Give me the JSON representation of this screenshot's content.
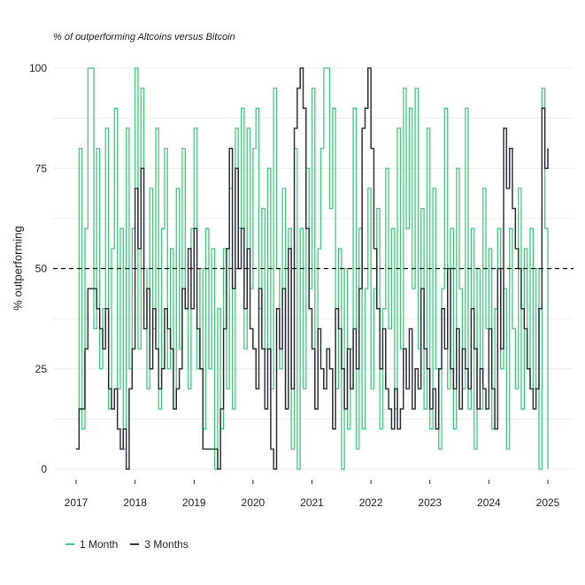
{
  "chart_data": {
    "type": "line",
    "title": "% of outperforming Altcoins versus Bitcoin",
    "ylabel": "% outperforming",
    "xlabel": "",
    "ylim": [
      0,
      100
    ],
    "y_ticks": [
      "0",
      "25",
      "50",
      "75",
      "100"
    ],
    "x_ticks": [
      "2017",
      "2018",
      "2019",
      "2020",
      "2021",
      "2022",
      "2023",
      "2024",
      "2025"
    ],
    "reference_line": {
      "y": 50,
      "style": "dashed",
      "color": "#111111"
    },
    "legend_position": "bottom-left",
    "grid": "horizontal",
    "x_unit": "year",
    "series": [
      {
        "name": "1 Month",
        "color": "#3ccf7a",
        "x": [
          2017.0,
          2017.05,
          2017.1,
          2017.15,
          2017.2,
          2017.25,
          2017.3,
          2017.35,
          2017.4,
          2017.45,
          2017.5,
          2017.55,
          2017.6,
          2017.65,
          2017.7,
          2017.75,
          2017.8,
          2017.85,
          2017.9,
          2017.95,
          2018.0,
          2018.05,
          2018.1,
          2018.15,
          2018.2,
          2018.25,
          2018.3,
          2018.35,
          2018.4,
          2018.45,
          2018.5,
          2018.55,
          2018.6,
          2018.65,
          2018.7,
          2018.75,
          2018.8,
          2018.85,
          2018.9,
          2018.95,
          2019.0,
          2019.05,
          2019.1,
          2019.15,
          2019.2,
          2019.25,
          2019.3,
          2019.35,
          2019.4,
          2019.45,
          2019.5,
          2019.55,
          2019.6,
          2019.65,
          2019.7,
          2019.75,
          2019.8,
          2019.85,
          2019.9,
          2019.95,
          2020.0,
          2020.05,
          2020.1,
          2020.15,
          2020.2,
          2020.25,
          2020.3,
          2020.35,
          2020.4,
          2020.45,
          2020.5,
          2020.55,
          2020.6,
          2020.65,
          2020.7,
          2020.75,
          2020.8,
          2020.85,
          2020.9,
          2020.95,
          2021.0,
          2021.05,
          2021.1,
          2021.15,
          2021.2,
          2021.25,
          2021.3,
          2021.35,
          2021.4,
          2021.45,
          2021.5,
          2021.55,
          2021.6,
          2021.65,
          2021.7,
          2021.75,
          2021.8,
          2021.85,
          2021.9,
          2021.95,
          2022.0,
          2022.05,
          2022.1,
          2022.15,
          2022.2,
          2022.25,
          2022.3,
          2022.35,
          2022.4,
          2022.45,
          2022.5,
          2022.55,
          2022.6,
          2022.65,
          2022.7,
          2022.75,
          2022.8,
          2022.85,
          2022.9,
          2022.95,
          2023.0,
          2023.05,
          2023.1,
          2023.15,
          2023.2,
          2023.25,
          2023.3,
          2023.35,
          2023.4,
          2023.45,
          2023.5,
          2023.55,
          2023.6,
          2023.65,
          2023.7,
          2023.75,
          2023.8,
          2023.85,
          2023.9,
          2023.95,
          2024.0,
          2024.05,
          2024.1,
          2024.15,
          2024.2,
          2024.25,
          2024.3,
          2024.35,
          2024.4,
          2024.45,
          2024.5,
          2024.55,
          2024.6,
          2024.65,
          2024.7,
          2024.75,
          2024.8,
          2024.85,
          2024.9,
          2024.95,
          2025.0
        ],
        "values": [
          5,
          80,
          10,
          60,
          100,
          100,
          35,
          80,
          25,
          40,
          85,
          15,
          55,
          90,
          20,
          60,
          5,
          85,
          25,
          60,
          100,
          30,
          95,
          50,
          20,
          70,
          35,
          85,
          15,
          60,
          80,
          25,
          55,
          15,
          70,
          30,
          80,
          40,
          20,
          60,
          85,
          25,
          50,
          10,
          60,
          25,
          55,
          0,
          40,
          10,
          55,
          20,
          70,
          15,
          85,
          60,
          90,
          30,
          85,
          45,
          80,
          90,
          40,
          65,
          30,
          75,
          20,
          95,
          50,
          25,
          70,
          15,
          60,
          5,
          80,
          0,
          60,
          20,
          75,
          45,
          95,
          15,
          55,
          80,
          100,
          100,
          65,
          90,
          20,
          55,
          0,
          50,
          10,
          30,
          90,
          5,
          60,
          10,
          45,
          70,
          20,
          45,
          65,
          10,
          40,
          75,
          35,
          60,
          15,
          85,
          30,
          95,
          60,
          90,
          45,
          95,
          30,
          65,
          15,
          85,
          10,
          70,
          25,
          5,
          45,
          90,
          20,
          60,
          10,
          75,
          45,
          20,
          90,
          15,
          60,
          5,
          50,
          15,
          70,
          35,
          55,
          10,
          40,
          60,
          25,
          45,
          5,
          60,
          35,
          20,
          70,
          15,
          55,
          25,
          60,
          20,
          50,
          0,
          95,
          60,
          0
        ]
      },
      {
        "name": "3 Months",
        "color": "#2d3238",
        "x": [
          2017.0,
          2017.05,
          2017.1,
          2017.15,
          2017.2,
          2017.25,
          2017.3,
          2017.35,
          2017.4,
          2017.45,
          2017.5,
          2017.55,
          2017.6,
          2017.65,
          2017.7,
          2017.75,
          2017.8,
          2017.85,
          2017.9,
          2017.95,
          2018.0,
          2018.05,
          2018.1,
          2018.15,
          2018.2,
          2018.25,
          2018.3,
          2018.35,
          2018.4,
          2018.45,
          2018.5,
          2018.55,
          2018.6,
          2018.65,
          2018.7,
          2018.75,
          2018.8,
          2018.85,
          2018.9,
          2018.95,
          2019.0,
          2019.05,
          2019.1,
          2019.15,
          2019.2,
          2019.25,
          2019.3,
          2019.35,
          2019.4,
          2019.45,
          2019.5,
          2019.55,
          2019.6,
          2019.65,
          2019.7,
          2019.75,
          2019.8,
          2019.85,
          2019.9,
          2019.95,
          2020.0,
          2020.05,
          2020.1,
          2020.15,
          2020.2,
          2020.25,
          2020.3,
          2020.35,
          2020.4,
          2020.45,
          2020.5,
          2020.55,
          2020.6,
          2020.65,
          2020.7,
          2020.75,
          2020.8,
          2020.85,
          2020.9,
          2020.95,
          2021.0,
          2021.05,
          2021.1,
          2021.15,
          2021.2,
          2021.25,
          2021.3,
          2021.35,
          2021.4,
          2021.45,
          2021.5,
          2021.55,
          2021.6,
          2021.65,
          2021.7,
          2021.75,
          2021.8,
          2021.85,
          2021.9,
          2021.95,
          2022.0,
          2022.05,
          2022.1,
          2022.15,
          2022.2,
          2022.25,
          2022.3,
          2022.35,
          2022.4,
          2022.45,
          2022.5,
          2022.55,
          2022.6,
          2022.65,
          2022.7,
          2022.75,
          2022.8,
          2022.85,
          2022.9,
          2022.95,
          2023.0,
          2023.05,
          2023.1,
          2023.15,
          2023.2,
          2023.25,
          2023.3,
          2023.35,
          2023.4,
          2023.45,
          2023.5,
          2023.55,
          2023.6,
          2023.65,
          2023.7,
          2023.75,
          2023.8,
          2023.85,
          2023.9,
          2023.95,
          2024.0,
          2024.05,
          2024.1,
          2024.15,
          2024.2,
          2024.25,
          2024.3,
          2024.35,
          2024.4,
          2024.45,
          2024.5,
          2024.55,
          2024.6,
          2024.65,
          2024.7,
          2024.75,
          2024.8,
          2024.85,
          2024.9,
          2024.95,
          2025.0
        ],
        "values": [
          5,
          15,
          15,
          30,
          45,
          45,
          45,
          40,
          35,
          30,
          40,
          20,
          15,
          20,
          10,
          5,
          10,
          0,
          20,
          30,
          70,
          55,
          75,
          35,
          45,
          25,
          40,
          30,
          20,
          25,
          40,
          35,
          30,
          15,
          20,
          25,
          45,
          40,
          55,
          40,
          60,
          35,
          25,
          5,
          5,
          5,
          5,
          5,
          0,
          15,
          35,
          55,
          80,
          45,
          75,
          50,
          60,
          40,
          55,
          35,
          30,
          20,
          45,
          30,
          15,
          30,
          5,
          0,
          40,
          30,
          45,
          15,
          55,
          20,
          85,
          95,
          100,
          90,
          60,
          40,
          30,
          15,
          35,
          25,
          20,
          30,
          25,
          10,
          40,
          35,
          25,
          15,
          30,
          20,
          35,
          25,
          45,
          85,
          90,
          100,
          80,
          55,
          40,
          25,
          35,
          20,
          15,
          10,
          20,
          10,
          15,
          30,
          20,
          35,
          15,
          25,
          20,
          45,
          30,
          25,
          15,
          20,
          10,
          25,
          40,
          30,
          50,
          25,
          20,
          35,
          15,
          30,
          25,
          20,
          40,
          30,
          15,
          25,
          20,
          15,
          35,
          20,
          10,
          50,
          30,
          85,
          70,
          80,
          65,
          55,
          50,
          40,
          35,
          25,
          20,
          15,
          20,
          40,
          90,
          75,
          80
        ]
      }
    ]
  },
  "legend": {
    "items": [
      {
        "label": "1 Month",
        "color": "#3ccf7a"
      },
      {
        "label": "3 Months",
        "color": "#2d3238"
      }
    ]
  }
}
